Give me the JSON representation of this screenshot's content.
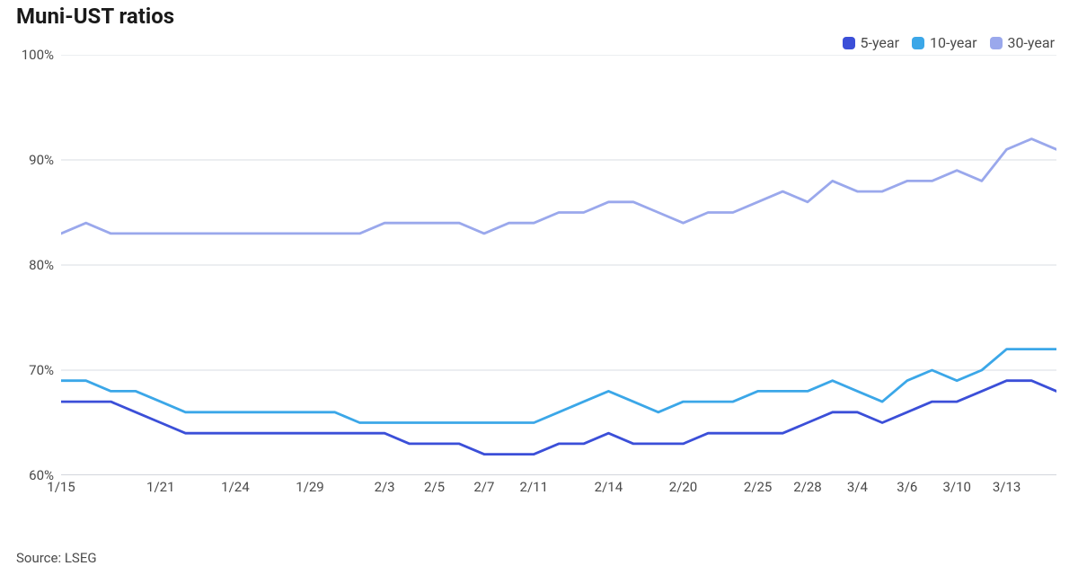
{
  "title": "Muni-UST ratios",
  "source": "Source: LSEG",
  "chart": {
    "type": "line",
    "background_color": "#ffffff",
    "grid_color": "#d9dde3",
    "axis_color": "#b9bec6",
    "label_color": "#4a4a4a",
    "title_fontsize": 24,
    "label_fontsize": 15,
    "line_width": 2.8,
    "ylim": [
      60,
      100
    ],
    "ytick_step": 10,
    "ytick_labels": [
      "60%",
      "70%",
      "80%",
      "90%",
      "100%"
    ],
    "x_count": 41,
    "x_ticks": [
      {
        "i": 0,
        "label": "1/15"
      },
      {
        "i": 4,
        "label": "1/21"
      },
      {
        "i": 7,
        "label": "1/24"
      },
      {
        "i": 10,
        "label": "1/29"
      },
      {
        "i": 13,
        "label": "2/3"
      },
      {
        "i": 15,
        "label": "2/5"
      },
      {
        "i": 17,
        "label": "2/7"
      },
      {
        "i": 19,
        "label": "2/11"
      },
      {
        "i": 22,
        "label": "2/14"
      },
      {
        "i": 25,
        "label": "2/20"
      },
      {
        "i": 28,
        "label": "2/25"
      },
      {
        "i": 30,
        "label": "2/28"
      },
      {
        "i": 32,
        "label": "3/4"
      },
      {
        "i": 34,
        "label": "3/6"
      },
      {
        "i": 36,
        "label": "3/10"
      },
      {
        "i": 38,
        "label": "3/13"
      }
    ],
    "series": [
      {
        "name": "5-year",
        "color": "#3b4fd8",
        "values": [
          67,
          67,
          67,
          66,
          65,
          64,
          64,
          64,
          64,
          64,
          64,
          64,
          64,
          64,
          63,
          63,
          63,
          62,
          62,
          62,
          63,
          63,
          64,
          63,
          63,
          63,
          64,
          64,
          64,
          64,
          65,
          66,
          66,
          65,
          66,
          67,
          67,
          68,
          69,
          69,
          68
        ]
      },
      {
        "name": "10-year",
        "color": "#3ba7e8",
        "values": [
          69,
          69,
          68,
          68,
          67,
          66,
          66,
          66,
          66,
          66,
          66,
          66,
          65,
          65,
          65,
          65,
          65,
          65,
          65,
          65,
          66,
          67,
          68,
          67,
          66,
          67,
          67,
          67,
          68,
          68,
          68,
          69,
          68,
          67,
          69,
          70,
          69,
          70,
          72,
          72,
          72
        ]
      },
      {
        "name": "30-year",
        "color": "#9aa8ec",
        "values": [
          83,
          84,
          83,
          83,
          83,
          83,
          83,
          83,
          83,
          83,
          83,
          83,
          83,
          84,
          84,
          84,
          84,
          83,
          84,
          84,
          85,
          85,
          86,
          86,
          85,
          84,
          85,
          85,
          86,
          87,
          86,
          88,
          87,
          87,
          88,
          88,
          89,
          88,
          91,
          92,
          91
        ]
      }
    ],
    "legend": {
      "position": "top-right",
      "swatch_radius": 4
    }
  }
}
